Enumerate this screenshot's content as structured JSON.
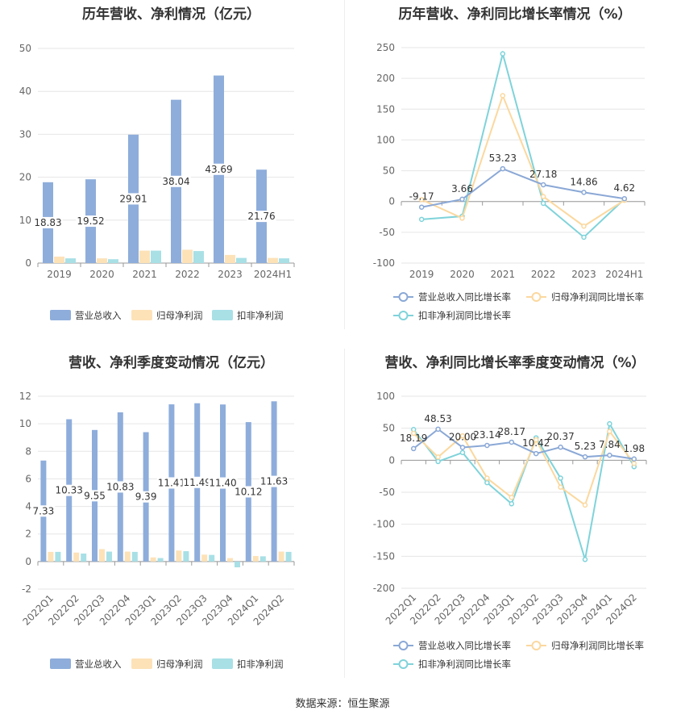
{
  "source_text": "数据来源：恒生聚源",
  "colors": {
    "revenue": "#8eaddb",
    "net_profit": "#fde2b8",
    "deducted_profit": "#a8e0e6",
    "revenue_line": "#8aa8d6",
    "net_profit_line": "#fbd89f",
    "deducted_line": "#7fd3da",
    "axis_text": "#666",
    "grid": "#e6e6e6",
    "label_text": "#333"
  },
  "chart_data": [
    {
      "id": "annual-amounts",
      "type": "bar",
      "title": "历年营收、净利情况（亿元）",
      "categories": [
        "2019",
        "2020",
        "2021",
        "2022",
        "2023",
        "2024H1"
      ],
      "ylim": [
        0,
        50
      ],
      "yticks": [
        0,
        10,
        20,
        30,
        40,
        50
      ],
      "series": [
        {
          "name": "营业总收入",
          "values": [
            18.83,
            19.52,
            29.91,
            38.04,
            43.69,
            21.76
          ],
          "labels": [
            "18.83",
            "19.52",
            "29.91",
            "38.04",
            "43.69",
            "21.76"
          ]
        },
        {
          "name": "归母净利润",
          "values": [
            1.5,
            1.1,
            2.9,
            3.1,
            1.9,
            1.2
          ]
        },
        {
          "name": "扣非净利润",
          "values": [
            1.1,
            0.9,
            2.9,
            2.8,
            1.2,
            1.1
          ]
        }
      ],
      "legend": "bottom",
      "grid": true
    },
    {
      "id": "annual-growth",
      "type": "line",
      "title": "历年营收、净利同比增长率情况（%）",
      "categories": [
        "2019",
        "2020",
        "2021",
        "2022",
        "2023",
        "2024H1"
      ],
      "ylim": [
        -100,
        250
      ],
      "yticks": [
        -100,
        -50,
        0,
        50,
        100,
        150,
        200,
        250
      ],
      "series": [
        {
          "name": "营业总收入同比增长率",
          "values": [
            -9.17,
            3.66,
            53.23,
            27.18,
            14.86,
            4.62
          ],
          "labels": [
            "-9.17",
            "3.66",
            "53.23",
            "27.18",
            "14.86",
            "4.62"
          ]
        },
        {
          "name": "归母净利润同比增长率",
          "values": [
            3,
            -27,
            172,
            8,
            -40,
            2
          ]
        },
        {
          "name": "扣非净利润同比增长率",
          "values": [
            -29,
            -24,
            240,
            -3,
            -58,
            4
          ]
        }
      ],
      "legend": "bottom",
      "grid": true
    },
    {
      "id": "quarterly-amounts",
      "type": "bar",
      "title": "营收、净利季度变动情况（亿元）",
      "categories": [
        "2022Q1",
        "2022Q2",
        "2022Q3",
        "2022Q4",
        "2023Q1",
        "2023Q2",
        "2023Q3",
        "2023Q4",
        "2024Q1",
        "2024Q2"
      ],
      "ylim": [
        -2,
        12
      ],
      "yticks": [
        -2,
        0,
        2,
        4,
        6,
        8,
        10,
        12
      ],
      "series": [
        {
          "name": "营业总收入",
          "values": [
            7.33,
            10.33,
            9.55,
            10.83,
            9.39,
            11.41,
            11.49,
            11.4,
            10.12,
            11.63
          ],
          "labels": [
            "7.33",
            "10.33",
            "9.55",
            "10.83",
            "9.39",
            "11.41",
            "11.49",
            "11.40",
            "10.12",
            "11.63"
          ]
        },
        {
          "name": "归母净利润",
          "values": [
            0.7,
            0.65,
            0.9,
            0.72,
            0.3,
            0.8,
            0.5,
            0.25,
            0.4,
            0.72
          ]
        },
        {
          "name": "扣非净利润",
          "values": [
            0.7,
            0.58,
            0.72,
            0.7,
            0.25,
            0.75,
            0.48,
            -0.42,
            0.38,
            0.7
          ]
        }
      ],
      "legend": "bottom",
      "grid": true
    },
    {
      "id": "quarterly-growth",
      "type": "line",
      "title": "营收、净利同比增长率季度变动情况（%）",
      "categories": [
        "2022Q1",
        "2022Q2",
        "2022Q3",
        "2022Q4",
        "2023Q1",
        "2023Q2",
        "2023Q3",
        "2023Q4",
        "2024Q1",
        "2024Q2"
      ],
      "ylim": [
        -200,
        100
      ],
      "yticks": [
        -200,
        -150,
        -100,
        -50,
        0,
        50,
        100
      ],
      "series": [
        {
          "name": "营业总收入同比增长率",
          "values": [
            18.19,
            48.53,
            20.0,
            23.14,
            28.17,
            10.42,
            20.37,
            5.23,
            7.84,
            1.98
          ],
          "labels": [
            "18.19",
            "48.53",
            "20.00",
            "23.14",
            "28.17",
            "10.42",
            "20.37",
            "5.23",
            "7.84",
            "1.98"
          ]
        },
        {
          "name": "归母净利润同比增长率",
          "values": [
            42,
            5,
            38,
            -28,
            -58,
            32,
            -42,
            -70,
            45,
            -5
          ]
        },
        {
          "name": "扣非净利润同比增长率",
          "values": [
            48,
            -2,
            12,
            -35,
            -68,
            35,
            -28,
            -155,
            57,
            -10
          ]
        }
      ],
      "legend": "bottom",
      "grid": true
    }
  ]
}
